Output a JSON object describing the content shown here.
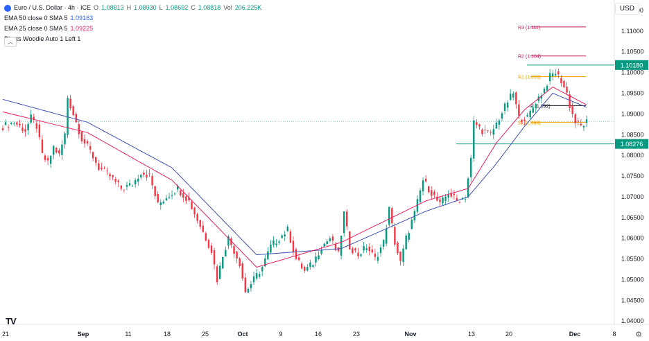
{
  "header": {
    "symbol": "Euro / U.S. Dollar · 4h · ICE",
    "ohlc": {
      "o_label": "O",
      "o": "1.08813",
      "h_label": "H",
      "h": "1.08930",
      "l_label": "L",
      "l": "1.08692",
      "c_label": "C",
      "c": "1.08818",
      "vol_label": "Vol",
      "vol": "206.225K"
    },
    "indicators": [
      {
        "label": "EMA 50 close 0 SMA 5",
        "value": "1.09163",
        "color": "#2962ff"
      },
      {
        "label": "EMA 25 close 0 SMA 5",
        "value": "1.09225",
        "color": "#e91e63"
      },
      {
        "label": "Pivots Woodie Auto 1 Left 1",
        "value": ""
      }
    ],
    "currency": "USD"
  },
  "chart_data": {
    "type": "candlestick",
    "instrument": "EURUSD 4h",
    "ylim": [
      1.0392,
      1.1175
    ],
    "y_ticks": [
      "1.11500",
      "1.11000",
      "1.10500",
      "1.10000",
      "1.09500",
      "1.09000",
      "1.08500",
      "1.08000",
      "1.07500",
      "1.07000",
      "1.06500",
      "1.06000",
      "1.05500",
      "1.05000",
      "1.04500",
      "1.04000"
    ],
    "x_ticks": [
      "21",
      "Sep",
      "11",
      "18",
      "25",
      "Oct",
      "9",
      "16",
      "23",
      "Nov",
      "13",
      "20",
      "Dec",
      "8"
    ],
    "price_labels": [
      {
        "text": "1.10180",
        "value": 1.1018,
        "color": "#089981"
      },
      {
        "text": "1.08276",
        "value": 1.08276,
        "color": "#089981"
      }
    ],
    "pivots": [
      {
        "label": "R3 (1.111)",
        "value": 1.111,
        "color": "#c2185b"
      },
      {
        "label": "R2 (1.104)",
        "value": 1.104,
        "color": "#c2185b"
      },
      {
        "label": "R1 (1.099)",
        "value": 1.099,
        "color": "#f59d00"
      },
      {
        "label": "P (1.092)",
        "value": 1.092,
        "color": "#131722"
      },
      {
        "label": "S1 (1.088)",
        "value": 1.088,
        "color": "#f59d00"
      }
    ],
    "price_path": [
      [
        0,
        1.087
      ],
      [
        4,
        1.088
      ],
      [
        8,
        1.086
      ],
      [
        10,
        1.089
      ],
      [
        12,
        1.087
      ],
      [
        14,
        1.08
      ],
      [
        16,
        1.078
      ],
      [
        18,
        1.082
      ],
      [
        20,
        1.08
      ],
      [
        22,
        1.085
      ],
      [
        23,
        1.094
      ],
      [
        25,
        1.09
      ],
      [
        28,
        1.084
      ],
      [
        31,
        1.081
      ],
      [
        34,
        1.077
      ],
      [
        38,
        1.075
      ],
      [
        42,
        1.072
      ],
      [
        46,
        1.073
      ],
      [
        49,
        1.076
      ],
      [
        52,
        1.075
      ],
      [
        55,
        1.068
      ],
      [
        58,
        1.07
      ],
      [
        62,
        1.072
      ],
      [
        66,
        1.069
      ],
      [
        70,
        1.063
      ],
      [
        74,
        1.057
      ],
      [
        76,
        1.05
      ],
      [
        78,
        1.056
      ],
      [
        80,
        1.06
      ],
      [
        84,
        1.054
      ],
      [
        86,
        1.047
      ],
      [
        89,
        1.05
      ],
      [
        92,
        1.053
      ],
      [
        95,
        1.058
      ],
      [
        98,
        1.06
      ],
      [
        101,
        1.062
      ],
      [
        104,
        1.055
      ],
      [
        107,
        1.052
      ],
      [
        110,
        1.054
      ],
      [
        113,
        1.058
      ],
      [
        116,
        1.06
      ],
      [
        119,
        1.056
      ],
      [
        121,
        1.066
      ],
      [
        123,
        1.058
      ],
      [
        126,
        1.056
      ],
      [
        129,
        1.058
      ],
      [
        132,
        1.055
      ],
      [
        135,
        1.059
      ],
      [
        137,
        1.067
      ],
      [
        139,
        1.059
      ],
      [
        141,
        1.054
      ],
      [
        143,
        1.06
      ],
      [
        146,
        1.066
      ],
      [
        149,
        1.074
      ],
      [
        152,
        1.071
      ],
      [
        155,
        1.068
      ],
      [
        158,
        1.071
      ],
      [
        161,
        1.069
      ],
      [
        164,
        1.07
      ],
      [
        166,
        1.079
      ],
      [
        167,
        1.088
      ],
      [
        170,
        1.086
      ],
      [
        173,
        1.085
      ],
      [
        176,
        1.089
      ],
      [
        179,
        1.093
      ],
      [
        181,
        1.095
      ],
      [
        183,
        1.089
      ],
      [
        186,
        1.089
      ],
      [
        189,
        1.093
      ],
      [
        192,
        1.096
      ],
      [
        194,
        1.099
      ],
      [
        196,
        1.1
      ],
      [
        198,
        1.098
      ],
      [
        200,
        1.095
      ],
      [
        201,
        1.092
      ],
      [
        203,
        1.088
      ],
      [
        205,
        1.087
      ],
      [
        207,
        1.088
      ]
    ],
    "ema50_path": [
      [
        0,
        1.0935
      ],
      [
        30,
        1.088
      ],
      [
        60,
        1.077
      ],
      [
        90,
        1.056
      ],
      [
        120,
        1.0575
      ],
      [
        150,
        1.0665
      ],
      [
        165,
        1.07
      ],
      [
        175,
        1.078
      ],
      [
        185,
        1.087
      ],
      [
        195,
        1.095
      ],
      [
        207,
        1.0916
      ]
    ],
    "ema25_path": [
      [
        0,
        1.0905
      ],
      [
        30,
        1.0855
      ],
      [
        60,
        1.074
      ],
      [
        90,
        1.053
      ],
      [
        120,
        1.059
      ],
      [
        150,
        1.069
      ],
      [
        165,
        1.072
      ],
      [
        175,
        1.083
      ],
      [
        185,
        1.091
      ],
      [
        195,
        1.0965
      ],
      [
        207,
        1.0922
      ]
    ],
    "n_bars": 208
  }
}
